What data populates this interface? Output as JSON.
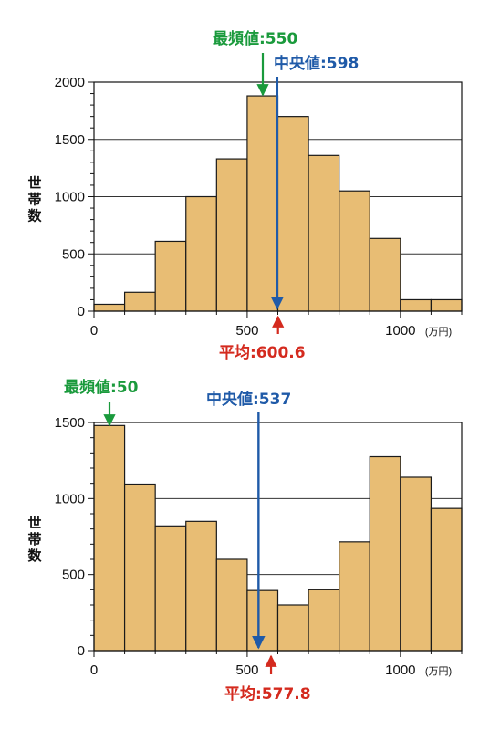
{
  "colors": {
    "bar_fill": "#e8bd74",
    "bar_stroke": "#1a1a1a",
    "mode": "#1a9a3c",
    "median": "#1f5aa8",
    "mean": "#d42a1e",
    "grid": "#333333"
  },
  "chart_data": [
    {
      "type": "bar",
      "ylabel": "世帯数",
      "xunit": "(万円)",
      "xticks": [
        "0",
        "500",
        "1000"
      ],
      "yticks": [
        "0",
        "500",
        "1000",
        "1500",
        "2000"
      ],
      "xlim": [
        0,
        1200
      ],
      "ylim": [
        0,
        2000
      ],
      "bin_width": 100,
      "bin_starts": [
        0,
        100,
        200,
        300,
        400,
        500,
        600,
        700,
        800,
        900,
        1000,
        1100
      ],
      "values": [
        60,
        165,
        610,
        1000,
        1330,
        1880,
        1700,
        1360,
        1050,
        635,
        100,
        100
      ],
      "grid_lines": [
        500,
        1000,
        1500
      ],
      "mode": {
        "label": "最頻値:550",
        "x": 550
      },
      "median": {
        "label": "中央値:598",
        "x": 598
      },
      "mean": {
        "label": "平均:600.6",
        "x": 600.6
      }
    },
    {
      "type": "bar",
      "ylabel": "世帯数",
      "xunit": "(万円)",
      "xticks": [
        "0",
        "500",
        "1000"
      ],
      "yticks": [
        "0",
        "500",
        "1000",
        "1500"
      ],
      "xlim": [
        0,
        1200
      ],
      "ylim": [
        0,
        1500
      ],
      "bin_width": 100,
      "bin_starts": [
        0,
        100,
        200,
        300,
        400,
        500,
        600,
        700,
        800,
        900,
        1000,
        1100
      ],
      "values": [
        1480,
        1095,
        820,
        850,
        600,
        395,
        300,
        400,
        715,
        1275,
        1140,
        935
      ],
      "grid_lines": [
        500,
        1000
      ],
      "mode": {
        "label": "最頻値:50",
        "x": 50
      },
      "median": {
        "label": "中央値:537",
        "x": 537
      },
      "mean": {
        "label": "平均:577.8",
        "x": 577.8
      }
    }
  ]
}
